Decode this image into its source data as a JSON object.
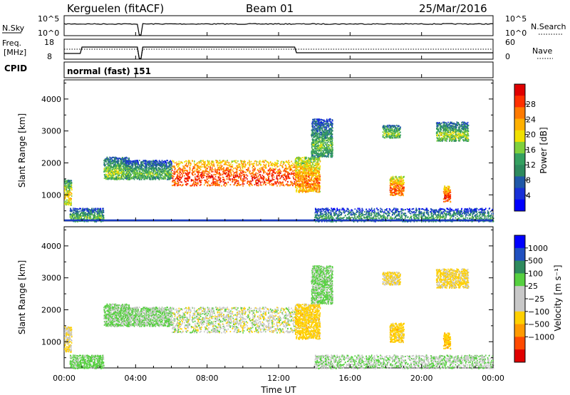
{
  "header": {
    "station": "Kerguelen (fitACF)",
    "beam": "Beam 01",
    "date": "25/Mar/2016"
  },
  "noise_panel": {
    "left_label": "N.Sky",
    "left_ticks": [
      "10^5",
      "10^0"
    ],
    "right_ticks": [
      "10^5",
      "10^0"
    ],
    "right_label": "N.Search"
  },
  "freq_panel": {
    "left_label_1": "Freq.",
    "left_label_2": "[MHz]",
    "left_ticks": [
      "18",
      "8"
    ],
    "right_ticks": [
      "60",
      "0"
    ],
    "right_label": "Nave"
  },
  "cpid": {
    "label": "CPID",
    "program": "normal (fast) 151"
  },
  "axes": {
    "ylabel": "Slant Range [km]",
    "y_ticks": [
      "4000",
      "3000",
      "2000",
      "1000"
    ],
    "x_ticks": [
      "00:00",
      "04:00",
      "08:00",
      "12:00",
      "16:00",
      "20:00",
      "00:00"
    ],
    "xlabel": "Time UT"
  },
  "power_colorbar": {
    "label": "Power [dB]",
    "ticks": [
      "28",
      "24",
      "20",
      "16",
      "12",
      "8",
      "4"
    ],
    "colors": [
      "#e00000",
      "#ff3000",
      "#ff7a00",
      "#ffb000",
      "#f0e000",
      "#7fd03c",
      "#35a060",
      "#2e8a5e",
      "#2058a8",
      "#1830d8",
      "#0000ff"
    ]
  },
  "velocity_colorbar": {
    "label": "Velocity [m s⁻¹]",
    "ticks": [
      "1000",
      "500",
      "100",
      "25",
      "−25",
      "−100",
      "−500",
      "−1000"
    ],
    "colors": [
      "#0000ff",
      "#2050c0",
      "#2e8a5e",
      "#56d040",
      "#c8c8c8",
      "#c8c8c8",
      "#ffd000",
      "#ff9a00",
      "#ff4a00",
      "#e00000"
    ]
  },
  "chart_data": {
    "type": "heatmap",
    "x_range_hours": [
      0,
      24
    ],
    "y_range_km": [
      180,
      4600
    ],
    "panels": [
      "power",
      "velocity"
    ],
    "scatter_regions": [
      {
        "t0": 0.0,
        "t1": 0.4,
        "r0": 700,
        "r1": 1500,
        "power": 14,
        "velocity": -30
      },
      {
        "t0": 0.3,
        "t1": 2.2,
        "r0": 180,
        "r1": 600,
        "power": 8,
        "velocity": 50
      },
      {
        "t0": 2.2,
        "t1": 3.6,
        "r0": 1500,
        "r1": 2200,
        "power": 10,
        "velocity": 40
      },
      {
        "t0": 3.4,
        "t1": 6.0,
        "r0": 1500,
        "r1": 2100,
        "power": 8,
        "velocity": 30
      },
      {
        "t0": 6.0,
        "t1": 12.9,
        "r0": 1300,
        "r1": 2100,
        "power": 22,
        "velocity": 0
      },
      {
        "t0": 12.9,
        "t1": 14.3,
        "r0": 1100,
        "r1": 2200,
        "power": 18,
        "velocity": -60
      },
      {
        "t0": 13.8,
        "t1": 15.0,
        "r0": 2200,
        "r1": 3400,
        "power": 8,
        "velocity": 40
      },
      {
        "t0": 17.8,
        "t1": 18.8,
        "r0": 2800,
        "r1": 3200,
        "power": 10,
        "velocity": -30
      },
      {
        "t0": 18.2,
        "t1": 19.0,
        "r0": 1000,
        "r1": 1600,
        "power": 20,
        "velocity": -60
      },
      {
        "t0": 20.8,
        "t1": 22.6,
        "r0": 2700,
        "r1": 3300,
        "power": 10,
        "velocity": -40
      },
      {
        "t0": 21.2,
        "t1": 21.6,
        "r0": 800,
        "r1": 1300,
        "power": 22,
        "velocity": -80
      },
      {
        "t0": 14.0,
        "t1": 24.0,
        "r0": 180,
        "r1": 600,
        "power": 6,
        "velocity": 20
      }
    ]
  }
}
